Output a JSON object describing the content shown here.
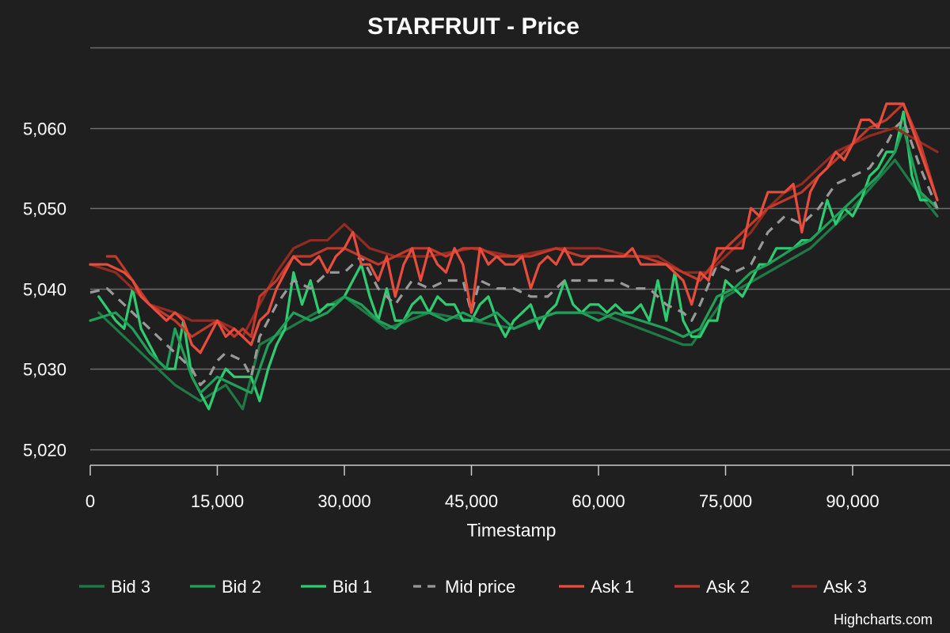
{
  "chart_data": {
    "type": "line",
    "title": "STARFRUIT - Price",
    "xlabel": "Timestamp",
    "ylabel": "",
    "xlim": [
      0,
      100000
    ],
    "ylim": [
      5018,
      5070
    ],
    "x_ticks": [
      0,
      15000,
      30000,
      45000,
      60000,
      75000,
      90000
    ],
    "x_tick_labels": [
      "0",
      "15,000",
      "30,000",
      "45,000",
      "60,000",
      "75,000",
      "90,000"
    ],
    "y_ticks": [
      5020,
      5030,
      5040,
      5050,
      5060,
      5070
    ],
    "y_tick_labels": [
      "5,020",
      "5,030",
      "5,040",
      "5,050",
      "5,060",
      ""
    ],
    "grid": true,
    "legend_position": "bottom",
    "credit": "Highcharts.com",
    "series": [
      {
        "name": "Bid 3",
        "color": "#1f7a45",
        "dash": false,
        "x": [
          1000,
          4000,
          7000,
          10000,
          13000,
          16000,
          18000,
          20000,
          25000,
          30000,
          35000,
          40000,
          45000,
          50000,
          55000,
          60000,
          65000,
          70000,
          71000,
          75000,
          80000,
          85000,
          90000,
          95000,
          97000,
          100000
        ],
        "y": [
          5037,
          5034,
          5031,
          5028,
          5026,
          5028,
          5025,
          5033,
          5036,
          5039,
          5035,
          5037,
          5036,
          5035,
          5037,
          5037,
          5035,
          5033,
          5033,
          5039,
          5042,
          5045,
          5050,
          5056,
          5053,
          5049
        ]
      },
      {
        "name": "Bid 2",
        "color": "#21a05a",
        "dash": false,
        "x": [
          0,
          3000,
          5000,
          7000,
          9000,
          10000,
          12000,
          13000,
          15000,
          17000,
          19000,
          21000,
          24000,
          26000,
          28000,
          30000,
          32000,
          34000,
          36000,
          38000,
          40000,
          42000,
          44000,
          46000,
          48000,
          50000,
          52000,
          55000,
          58000,
          60000,
          62000,
          65000,
          68000,
          70000,
          72000,
          74000,
          76000,
          78000,
          80000,
          83000,
          85000,
          87000,
          89000,
          91000,
          93000,
          95000,
          96000,
          98000,
          100000
        ],
        "y": [
          5036,
          5037,
          5035,
          5032,
          5030,
          5035,
          5029,
          5027,
          5029,
          5028,
          5027,
          5033,
          5037,
          5036,
          5037,
          5039,
          5038,
          5036,
          5035,
          5037,
          5037,
          5036,
          5037,
          5036,
          5037,
          5035,
          5036,
          5037,
          5037,
          5036,
          5037,
          5036,
          5035,
          5034,
          5035,
          5039,
          5040,
          5042,
          5043,
          5045,
          5046,
          5048,
          5050,
          5052,
          5054,
          5057,
          5060,
          5052,
          5050
        ]
      },
      {
        "name": "Bid 1",
        "color": "#2ecc71",
        "dash": false,
        "x": [
          1000,
          3000,
          4000,
          5000,
          6000,
          7000,
          8000,
          9000,
          10000,
          11000,
          12000,
          13000,
          14000,
          15000,
          16000,
          17000,
          18000,
          19000,
          20000,
          21000,
          22000,
          23000,
          24000,
          25000,
          26000,
          27000,
          28000,
          29000,
          30000,
          31000,
          32000,
          33000,
          34000,
          35000,
          36000,
          37000,
          38000,
          39000,
          40000,
          41000,
          42000,
          43000,
          44000,
          45000,
          46000,
          47000,
          48000,
          49000,
          50000,
          51000,
          52000,
          53000,
          54000,
          55000,
          56000,
          57000,
          58000,
          59000,
          60000,
          61000,
          62000,
          63000,
          64000,
          65000,
          66000,
          67000,
          68000,
          69000,
          70000,
          71000,
          72000,
          73000,
          74000,
          75000,
          76000,
          77000,
          78000,
          79000,
          80000,
          81000,
          82000,
          83000,
          84000,
          85000,
          86000,
          87000,
          88000,
          89000,
          90000,
          91000,
          92000,
          93000,
          94000,
          95000,
          96000,
          97000,
          98000,
          99000,
          100000
        ],
        "y": [
          5039,
          5036,
          5035,
          5040,
          5035,
          5033,
          5031,
          5030,
          5030,
          5036,
          5029,
          5027,
          5025,
          5028,
          5030,
          5029,
          5029,
          5029,
          5026,
          5030,
          5033,
          5035,
          5042,
          5038,
          5041,
          5037,
          5038,
          5038,
          5039,
          5041,
          5043,
          5039,
          5036,
          5040,
          5036,
          5036,
          5038,
          5039,
          5037,
          5039,
          5038,
          5038,
          5036,
          5036,
          5038,
          5039,
          5036,
          5034,
          5036,
          5037,
          5038,
          5035,
          5037,
          5038,
          5041,
          5038,
          5037,
          5038,
          5038,
          5037,
          5038,
          5037,
          5037,
          5038,
          5036,
          5041,
          5036,
          5042,
          5036,
          5034,
          5034,
          5036,
          5036,
          5041,
          5040,
          5039,
          5041,
          5043,
          5043,
          5045,
          5045,
          5045,
          5046,
          5046,
          5047,
          5051,
          5048,
          5050,
          5049,
          5051,
          5054,
          5055,
          5057,
          5057,
          5062,
          5054,
          5051,
          5051,
          5050
        ]
      },
      {
        "name": "Mid price",
        "color": "#999999",
        "dash": true,
        "x": [
          0,
          2000,
          4000,
          6000,
          8000,
          10000,
          12000,
          13000,
          14000,
          15000,
          16000,
          18000,
          19000,
          20000,
          22000,
          24000,
          26000,
          28000,
          30000,
          32000,
          34000,
          36000,
          38000,
          40000,
          42000,
          44000,
          45000,
          46000,
          48000,
          50000,
          52000,
          54000,
          56000,
          58000,
          60000,
          62000,
          64000,
          66000,
          68000,
          70000,
          71000,
          72000,
          74000,
          76000,
          78000,
          80000,
          82000,
          84000,
          86000,
          88000,
          90000,
          92000,
          94000,
          95000,
          96000,
          98000,
          100000
        ],
        "y": [
          5039.5,
          5040,
          5038,
          5036,
          5034,
          5032,
          5030,
          5028,
          5029,
          5031,
          5032,
          5031,
          5029,
          5034,
          5038,
          5041,
          5040,
          5042,
          5042,
          5044,
          5040,
          5038,
          5041,
          5040,
          5041,
          5041,
          5037,
          5041,
          5040,
          5040,
          5039,
          5039,
          5041,
          5041,
          5041,
          5041,
          5040,
          5040,
          5038,
          5037,
          5036,
          5038,
          5043,
          5042,
          5043,
          5047,
          5049,
          5048,
          5050,
          5053,
          5054,
          5055,
          5058,
          5060,
          5061,
          5055,
          5050
        ]
      },
      {
        "name": "Ask 1",
        "color": "#e74c3c",
        "dash": false,
        "x": [
          0,
          2000,
          4000,
          5000,
          6000,
          7000,
          8000,
          9000,
          10000,
          11000,
          12000,
          13000,
          14000,
          15000,
          16000,
          17000,
          18000,
          19000,
          20000,
          21000,
          22000,
          23000,
          24000,
          25000,
          26000,
          27000,
          28000,
          29000,
          30000,
          31000,
          32000,
          33000,
          34000,
          35000,
          36000,
          37000,
          38000,
          39000,
          40000,
          41000,
          42000,
          43000,
          44000,
          45000,
          46000,
          47000,
          48000,
          49000,
          50000,
          51000,
          52000,
          53000,
          54000,
          55000,
          56000,
          57000,
          58000,
          59000,
          60000,
          61000,
          62000,
          63000,
          64000,
          65000,
          66000,
          67000,
          68000,
          69000,
          70000,
          71000,
          72000,
          73000,
          74000,
          75000,
          76000,
          77000,
          78000,
          79000,
          80000,
          81000,
          82000,
          83000,
          84000,
          85000,
          86000,
          87000,
          88000,
          89000,
          90000,
          91000,
          92000,
          93000,
          94000,
          95000,
          96000,
          97000,
          98000,
          99000,
          100000
        ],
        "y": [
          5043,
          5043,
          5042,
          5041,
          5039,
          5038,
          5037,
          5036,
          5037,
          5036,
          5033,
          5032,
          5034,
          5036,
          5034,
          5035,
          5034,
          5033,
          5036,
          5037,
          5040,
          5042,
          5044,
          5043,
          5043,
          5044,
          5042,
          5044,
          5045,
          5047,
          5043,
          5043,
          5041,
          5044,
          5039,
          5043,
          5045,
          5041,
          5045,
          5043,
          5042,
          5045,
          5043,
          5037,
          5045,
          5043,
          5044,
          5043,
          5043,
          5044,
          5040,
          5043,
          5044,
          5043,
          5045,
          5043,
          5043,
          5044,
          5044,
          5044,
          5044,
          5044,
          5045,
          5043,
          5043,
          5043,
          5043,
          5042,
          5041,
          5038,
          5042,
          5041,
          5045,
          5045,
          5045,
          5045,
          5050,
          5049,
          5052,
          5052,
          5052,
          5053,
          5047,
          5052,
          5054,
          5055,
          5057,
          5056,
          5058,
          5061,
          5061,
          5060,
          5063,
          5063,
          5063,
          5060,
          5057,
          5054,
          5051
        ]
      },
      {
        "name": "Ask 2",
        "color": "#c0392b",
        "dash": false,
        "x": [
          2000,
          3000,
          5000,
          7000,
          10000,
          12000,
          15000,
          17000,
          18000,
          19000,
          20000,
          22000,
          24000,
          26000,
          28000,
          30000,
          32000,
          34000,
          36000,
          38000,
          40000,
          42000,
          44000,
          46000,
          48000,
          50000,
          52000,
          55000,
          58000,
          60000,
          62000,
          65000,
          68000,
          70000,
          72000,
          75000,
          78000,
          80000,
          82000,
          84000,
          86000,
          88000,
          90000,
          92000,
          94000,
          96000,
          98000,
          100000
        ],
        "y": [
          5044,
          5044,
          5041,
          5038,
          5036,
          5034,
          5036,
          5034,
          5035,
          5034,
          5039,
          5041,
          5044,
          5044,
          5045,
          5045,
          5044,
          5043,
          5044,
          5045,
          5045,
          5044,
          5045,
          5045,
          5044,
          5044,
          5044,
          5045,
          5044,
          5044,
          5044,
          5044,
          5043,
          5042,
          5041,
          5045,
          5048,
          5050,
          5051,
          5052,
          5054,
          5056,
          5058,
          5060,
          5061,
          5063,
          5058,
          5051
        ]
      },
      {
        "name": "Ask 3",
        "color": "#922b21",
        "dash": false,
        "x": [
          0,
          3000,
          5000,
          7000,
          10000,
          12000,
          15000,
          17000,
          18000,
          20000,
          22000,
          24000,
          26000,
          28000,
          30000,
          33000,
          36000,
          40000,
          45000,
          50000,
          55000,
          60000,
          64000,
          67000,
          70000,
          73000,
          76000,
          78000,
          80000,
          82000,
          84000,
          86000,
          88000,
          90000,
          92000,
          95000,
          100000
        ],
        "y": [
          5043,
          5042,
          5040,
          5038,
          5037,
          5036,
          5036,
          5035,
          5034,
          5038,
          5042,
          5045,
          5046,
          5046,
          5048,
          5045,
          5044,
          5044,
          5045,
          5044,
          5045,
          5045,
          5044,
          5044,
          5042,
          5042,
          5045,
          5047,
          5050,
          5052,
          5053,
          5055,
          5057,
          5058,
          5059,
          5060,
          5057
        ]
      }
    ]
  }
}
